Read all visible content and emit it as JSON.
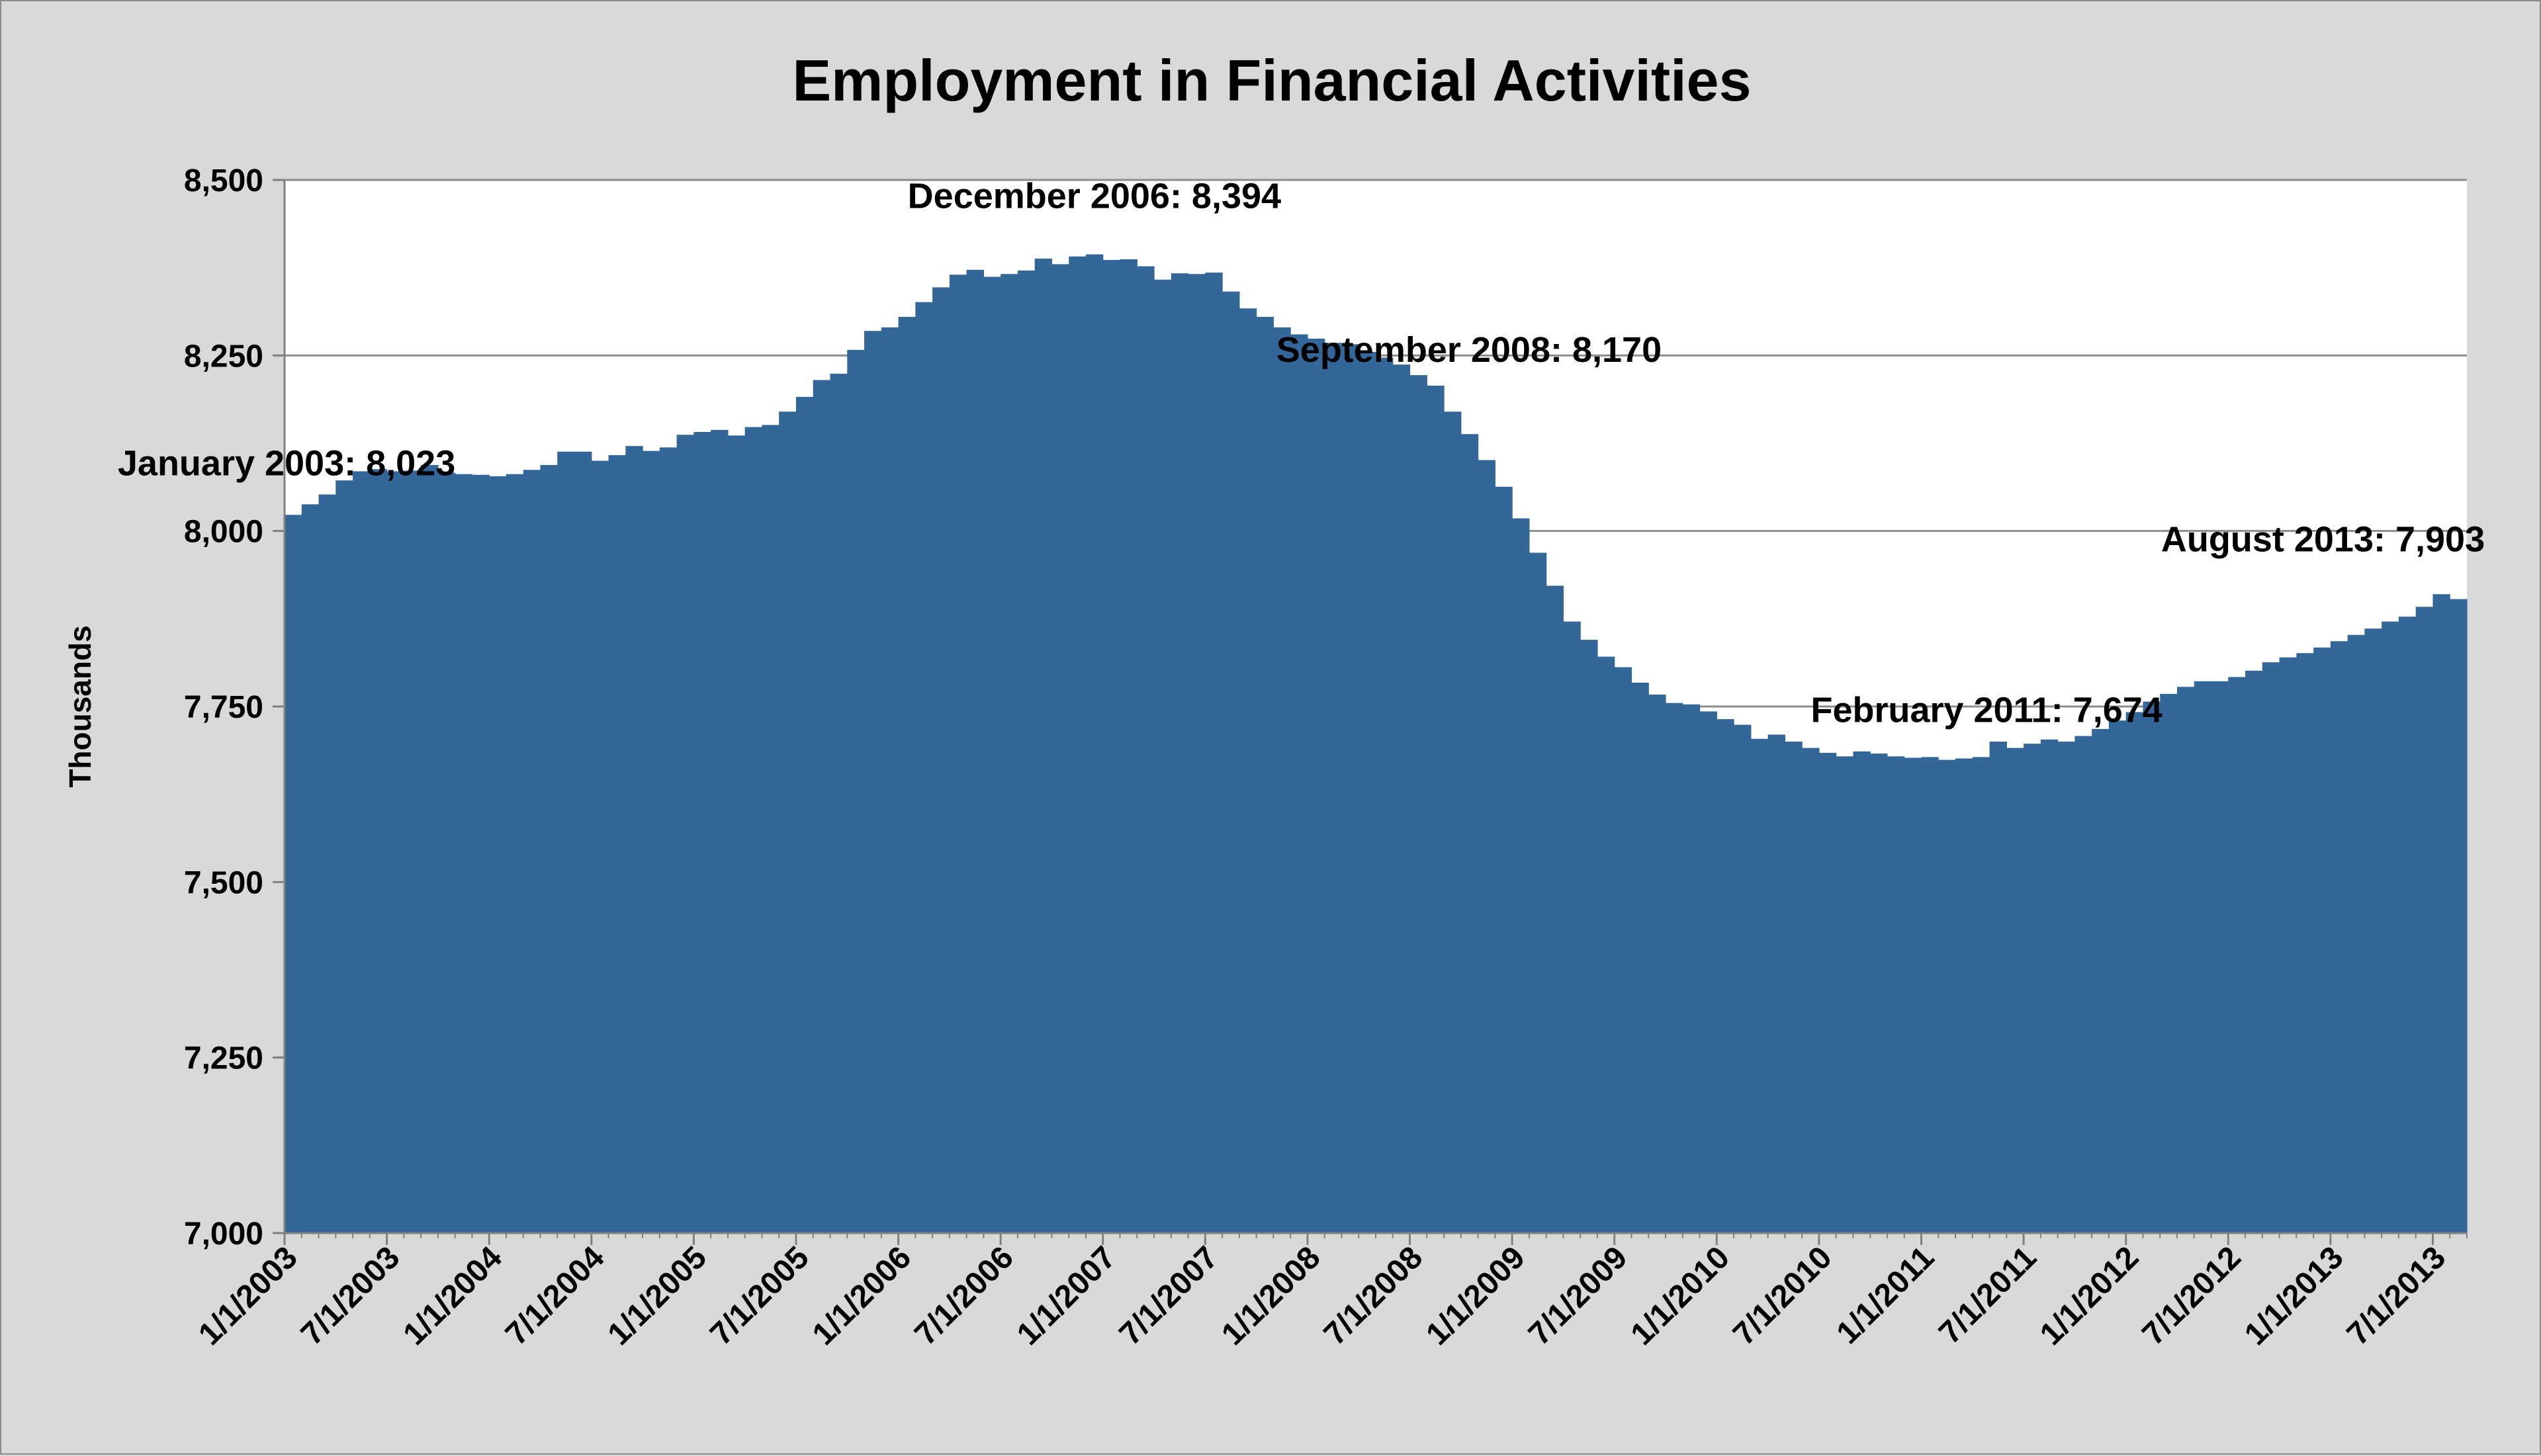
{
  "chart_data": {
    "type": "area",
    "title": "Employment in Financial Activities",
    "xlabel": "",
    "ylabel": "Thousands",
    "ylim": [
      7000,
      8500
    ],
    "yticks": [
      "7,000",
      "7,250",
      "7,500",
      "7,750",
      "8,000",
      "8,250",
      "8,500"
    ],
    "ytick_values": [
      7000,
      7250,
      7500,
      7750,
      8000,
      8250,
      8500
    ],
    "xtick_labels": [
      "1/1/2003",
      "7/1/2003",
      "1/1/2004",
      "7/1/2004",
      "1/1/2005",
      "7/1/2005",
      "1/1/2006",
      "7/1/2006",
      "1/1/2007",
      "7/1/2007",
      "1/1/2008",
      "7/1/2008",
      "1/1/2009",
      "7/1/2009",
      "1/1/2010",
      "7/1/2010",
      "1/1/2011",
      "7/1/2011",
      "1/1/2012",
      "7/1/2012",
      "1/1/2013",
      "7/1/2013"
    ],
    "grid": "horizontal",
    "legend": "none",
    "series_color": "#336699",
    "series": [
      {
        "x_start": "1/1/2003",
        "x_step": "month",
        "values": [
          8023,
          8038,
          8052,
          8072,
          8085,
          8088,
          8085,
          8086,
          8094,
          8083,
          8081,
          8080,
          8078,
          8081,
          8087,
          8094,
          8113,
          8113,
          8100,
          8108,
          8121,
          8114,
          8119,
          8137,
          8141,
          8144,
          8136,
          8148,
          8151,
          8170,
          8191,
          8215,
          8224,
          8258,
          8285,
          8290,
          8305,
          8326,
          8347,
          8365,
          8372,
          8362,
          8366,
          8371,
          8388,
          8380,
          8391,
          8394,
          8386,
          8387,
          8377,
          8358,
          8367,
          8366,
          8368,
          8341,
          8317,
          8305,
          8290,
          8280,
          8274,
          8268,
          8266,
          8255,
          8247,
          8237,
          8222,
          8207,
          8170,
          8138,
          8101,
          8063,
          8018,
          7969,
          7922,
          7871,
          7845,
          7821,
          7806,
          7784,
          7767,
          7755,
          7753,
          7743,
          7732,
          7724,
          7704,
          7710,
          7700,
          7691,
          7684,
          7679,
          7686,
          7683,
          7679,
          7677,
          7678,
          7674,
          7676,
          7678,
          7700,
          7691,
          7697,
          7703,
          7700,
          7708,
          7718,
          7730,
          7742,
          7757,
          7768,
          7778,
          7786,
          7786,
          7792,
          7801,
          7813,
          7820,
          7826,
          7834,
          7843,
          7852,
          7861,
          7871,
          7878,
          7892,
          7910,
          7903
        ]
      }
    ],
    "annotations": [
      {
        "text": "January 2003: 8,023"
      },
      {
        "text": "December 2006: 8,394"
      },
      {
        "text": "September 2008: 8,170"
      },
      {
        "text": "February 2011: 7,674"
      },
      {
        "text": "August 2013: 7,903"
      }
    ]
  }
}
